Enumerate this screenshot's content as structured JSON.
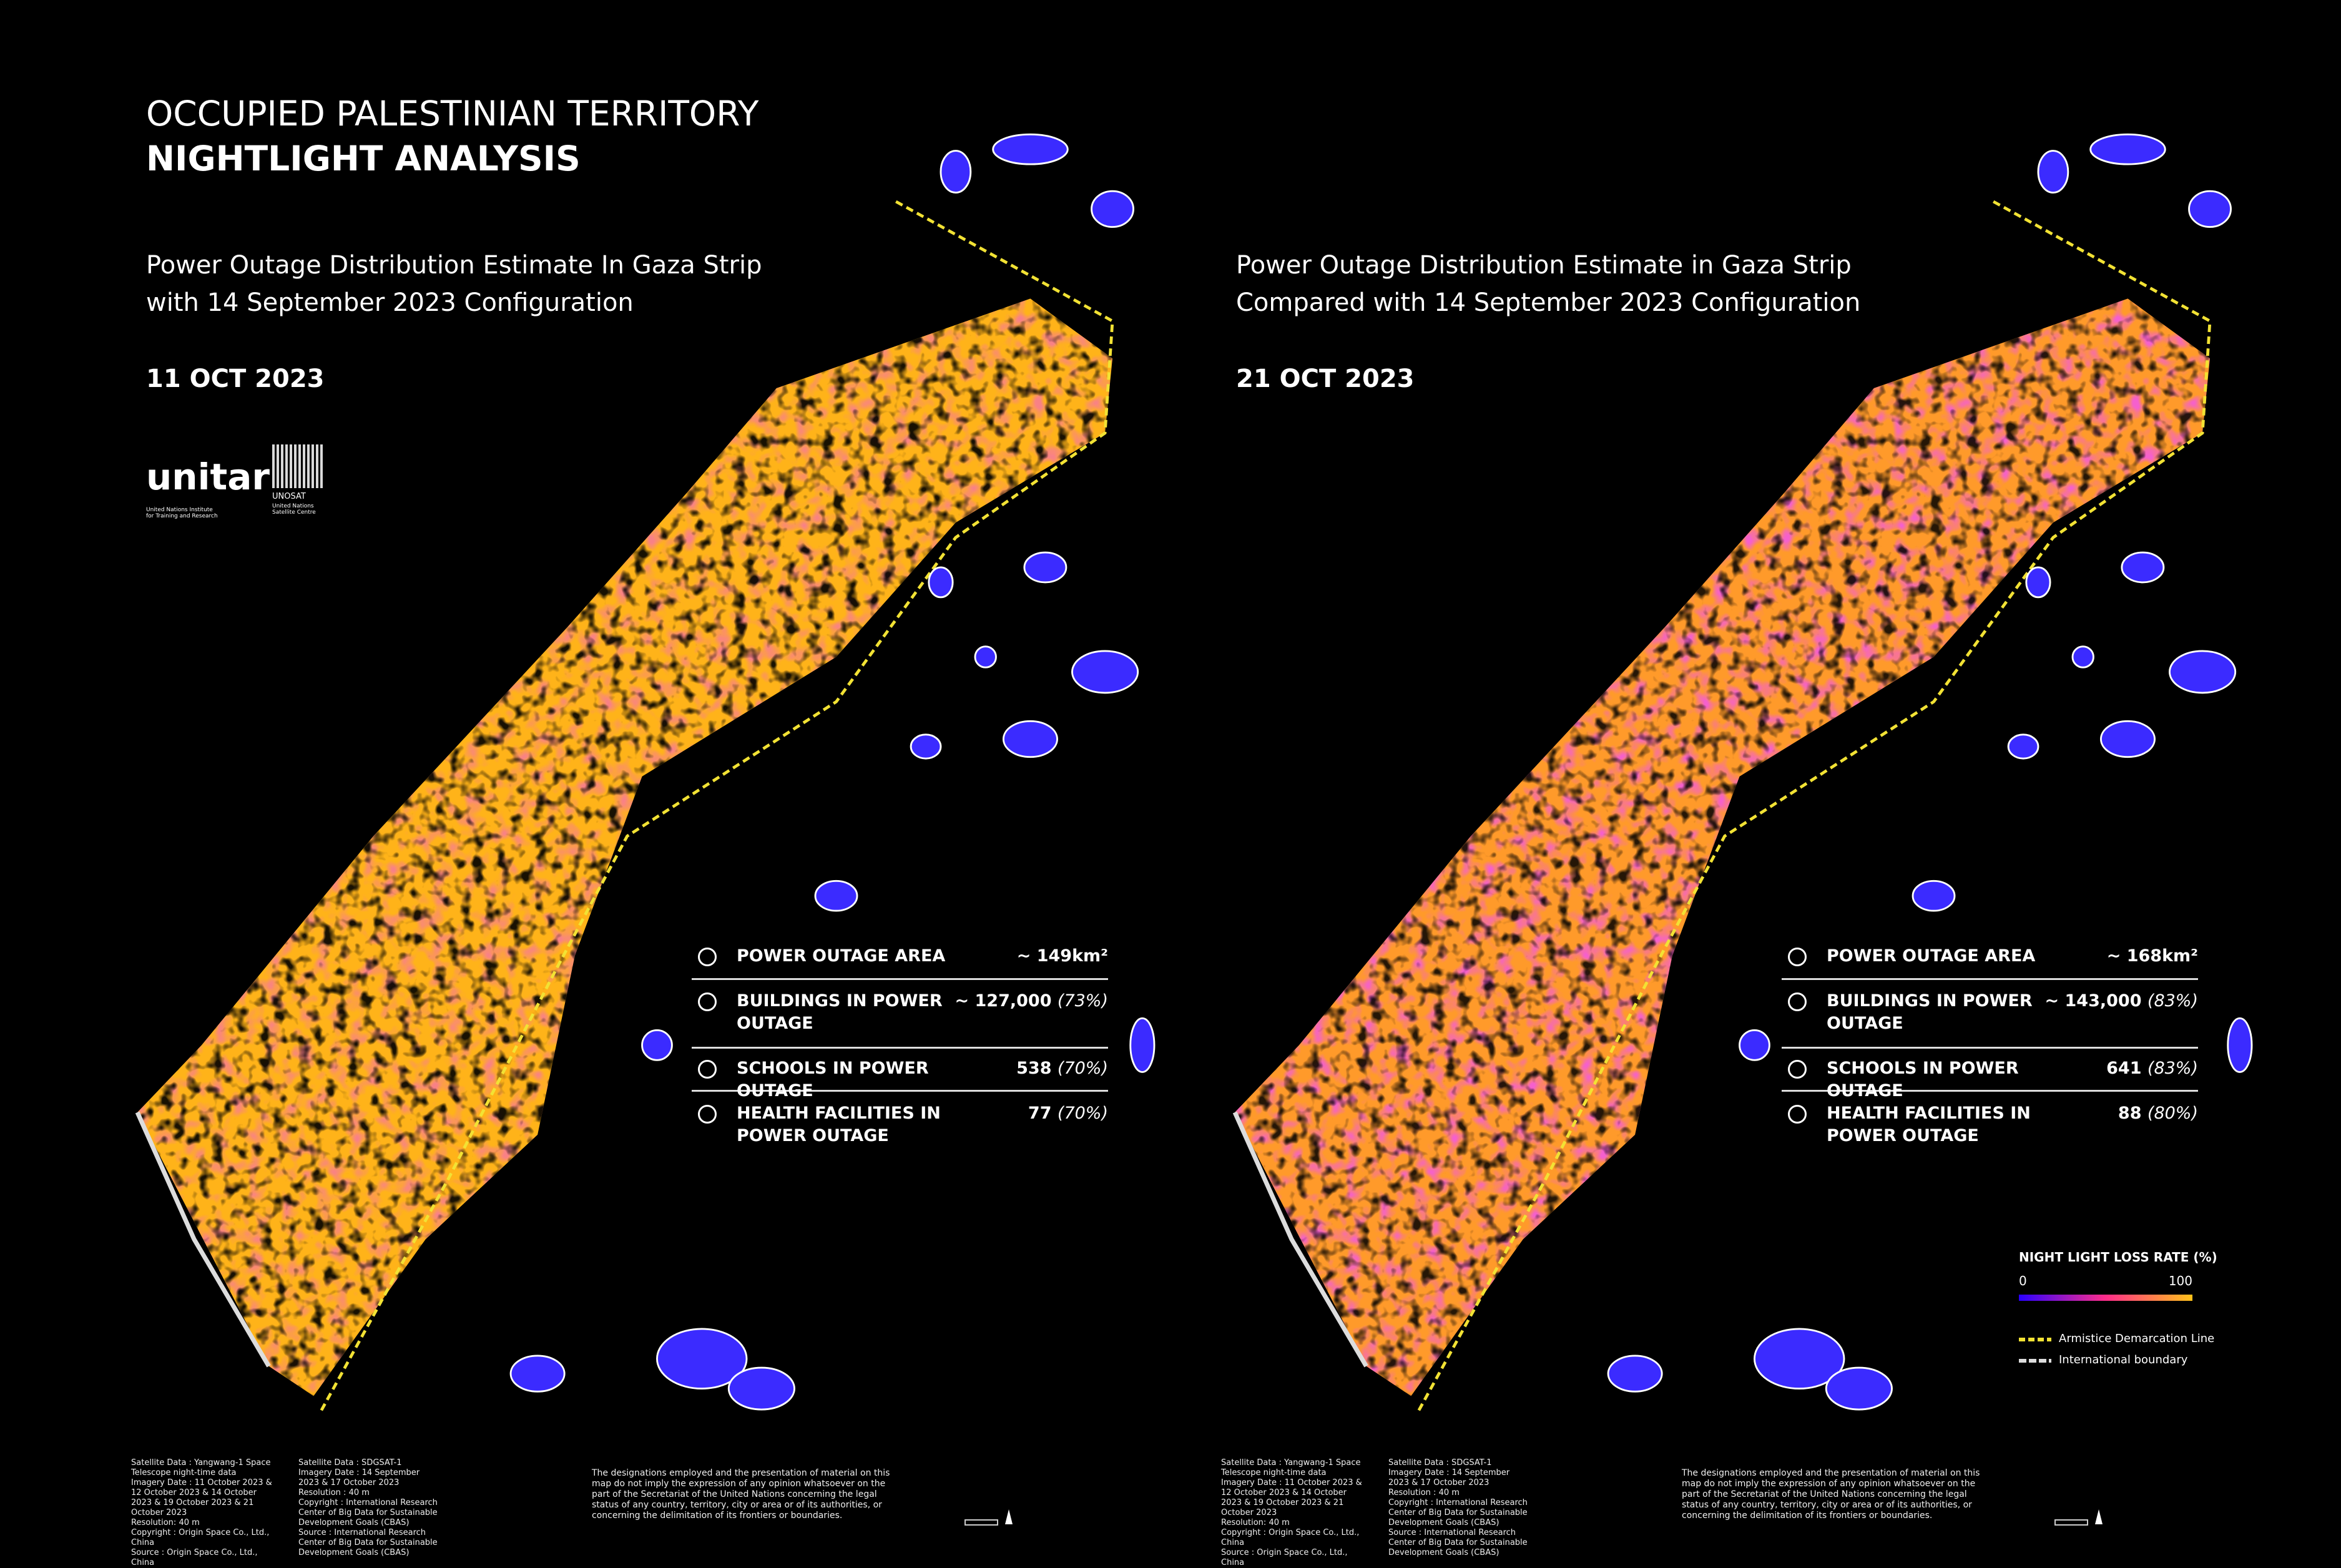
{
  "header": {
    "title_line1": "OCCUPIED PALESTINIAN TERRITORY",
    "title_line2": "NIGHTLIGHT ANALYSIS"
  },
  "logos": {
    "unitar": "unitar",
    "unitar_sub": "United Nations Institute for Training and Research",
    "unosat": "UNOSAT",
    "unosat_sub": "United Nations Satellite Centre"
  },
  "panels": [
    {
      "subtitle": [
        "Power Outage Distribution Estimate In Gaza Strip",
        "with 14 September 2023 Configuration"
      ],
      "date": "11 OCT 2023",
      "stats": [
        {
          "label": "POWER OUTAGE AREA",
          "value": "~ 149km²"
        },
        {
          "label": "BUILDINGS IN POWER OUTAGE",
          "value": "~ 127,000",
          "percent": "(73%)"
        },
        {
          "label": "SCHOOLS IN POWER OUTAGE",
          "value": "538",
          "percent": "(70%)"
        },
        {
          "label": "HEALTH FACILITIES IN POWER OUTAGE",
          "value": "77",
          "percent": "(70%)"
        }
      ],
      "footer": {
        "col1": [
          "Satellite Data : Yangwang-1 Space Telescope night-time data",
          "Imagery Date : 11 October 2023 & 12 October 2023 & 14 October 2023 & 19 October 2023 & 21 October 2023",
          "Resolution: 40 m",
          "Copyright : Origin Space Co., Ltd., China",
          "Source : Origin Space Co., Ltd., China"
        ],
        "col2": [
          "Satellite Data : SDGSAT-1",
          "Imagery Date : 14 September 2023 & 17 October 2023",
          "Resolution : 40 m",
          "Copyright : International Research Center of Big Data for Sustainable Development Goals (CBAS)",
          "Source : International Research Center of Big Data for Sustainable Development Goals (CBAS)"
        ],
        "disclaimer": "The designations employed and the presentation of material on this map do not imply the expression of any opinion whatsoever on the part of the Secretariat of the United Nations concerning the legal status of any country, territory, city or area or of its authorities, or concerning the delimitation of its frontiers or boundaries."
      }
    },
    {
      "subtitle": [
        "Power Outage Distribution Estimate in Gaza Strip",
        "Compared with 14 September 2023 Configuration"
      ],
      "date": "21 OCT 2023",
      "stats": [
        {
          "label": "POWER OUTAGE AREA",
          "value": "~ 168km²"
        },
        {
          "label": "BUILDINGS IN POWER OUTAGE",
          "value": "~ 143,000",
          "percent": "(83%)"
        },
        {
          "label": "SCHOOLS IN POWER OUTAGE",
          "value": "641",
          "percent": "(83%)"
        },
        {
          "label": "HEALTH FACILITIES IN POWER OUTAGE",
          "value": "88",
          "percent": "(80%)"
        }
      ],
      "footer": {
        "col1": [
          "Satellite Data : Yangwang-1 Space Telescope night-time data",
          "Imagery Date : 11 October 2023 & 12 October 2023 & 14 October 2023 & 19 October 2023 & 21 October 2023",
          "Resolution: 40 m",
          "Copyright : Origin Space Co., Ltd., China",
          "Source : Origin Space Co., Ltd., China"
        ],
        "col2": [
          "Satellite Data : SDGSAT-1",
          "Imagery Date : 14 September 2023 & 17 October 2023",
          "Resolution : 40 m",
          "Copyright : International Research Center of Big Data for Sustainable Development Goals (CBAS)",
          "Source : International Research Center of Big Data for Sustainable Development Goals (CBAS)"
        ],
        "disclaimer": "The designations employed and the presentation of material on this map do not imply the expression of any opinion whatsoever on the part of the Secretariat of the United Nations concerning the legal status of any country, territory, city or area or of its authorities, or concerning the delimitation of its frontiers or boundaries."
      }
    }
  ],
  "legend": {
    "title": "NIGHT LIGHT LOSS RATE (%)",
    "min": 0,
    "max": 100,
    "armistice": "Armistice Demarcation Line",
    "boundary": "International boundary"
  }
}
